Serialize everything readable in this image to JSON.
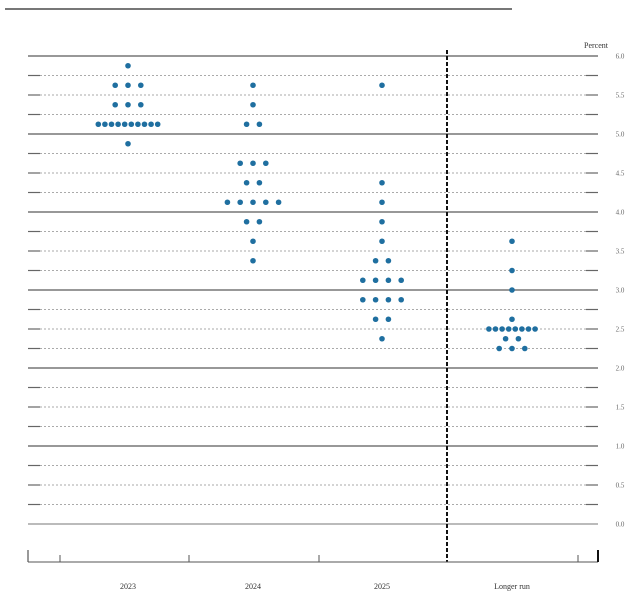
{
  "chart_data": {
    "type": "scatter",
    "subtype": "dot-plot",
    "title": "",
    "ylabel": "Percent",
    "xlabel": "",
    "ylim": [
      0,
      6
    ],
    "y_ticks": [
      "6.0",
      "5.5",
      "5.0",
      "4.5",
      "4.0",
      "3.5",
      "3.0",
      "2.5",
      "2.0",
      "1.5",
      "1.0",
      "0.5",
      "0.0"
    ],
    "categories": [
      "2023",
      "2024",
      "2025",
      "Longer run"
    ],
    "grid": true,
    "divider_before": "Longer run",
    "dot_color": "#1f6fa0",
    "series": [
      {
        "name": "2023",
        "points": [
          {
            "value": 5.875,
            "count": 1
          },
          {
            "value": 5.625,
            "count": 3
          },
          {
            "value": 5.375,
            "count": 3
          },
          {
            "value": 5.125,
            "count": 10
          },
          {
            "value": 4.875,
            "count": 1
          }
        ]
      },
      {
        "name": "2024",
        "points": [
          {
            "value": 5.625,
            "count": 1
          },
          {
            "value": 5.375,
            "count": 1
          },
          {
            "value": 5.125,
            "count": 2
          },
          {
            "value": 4.625,
            "count": 3
          },
          {
            "value": 4.375,
            "count": 2
          },
          {
            "value": 4.125,
            "count": 5
          },
          {
            "value": 3.875,
            "count": 2
          },
          {
            "value": 3.625,
            "count": 1
          },
          {
            "value": 3.375,
            "count": 1
          }
        ]
      },
      {
        "name": "2025",
        "points": [
          {
            "value": 5.625,
            "count": 1
          },
          {
            "value": 4.375,
            "count": 1
          },
          {
            "value": 4.125,
            "count": 1
          },
          {
            "value": 3.875,
            "count": 1
          },
          {
            "value": 3.625,
            "count": 1
          },
          {
            "value": 3.375,
            "count": 2
          },
          {
            "value": 3.125,
            "count": 4
          },
          {
            "value": 2.875,
            "count": 4
          },
          {
            "value": 2.625,
            "count": 2
          },
          {
            "value": 2.375,
            "count": 1
          }
        ]
      },
      {
        "name": "Longer run",
        "points": [
          {
            "value": 3.625,
            "count": 1
          },
          {
            "value": 3.25,
            "count": 1
          },
          {
            "value": 3.0,
            "count": 1
          },
          {
            "value": 2.625,
            "count": 1
          },
          {
            "value": 2.5,
            "count": 8
          },
          {
            "value": 2.375,
            "count": 2
          },
          {
            "value": 2.25,
            "count": 3
          }
        ]
      }
    ]
  }
}
